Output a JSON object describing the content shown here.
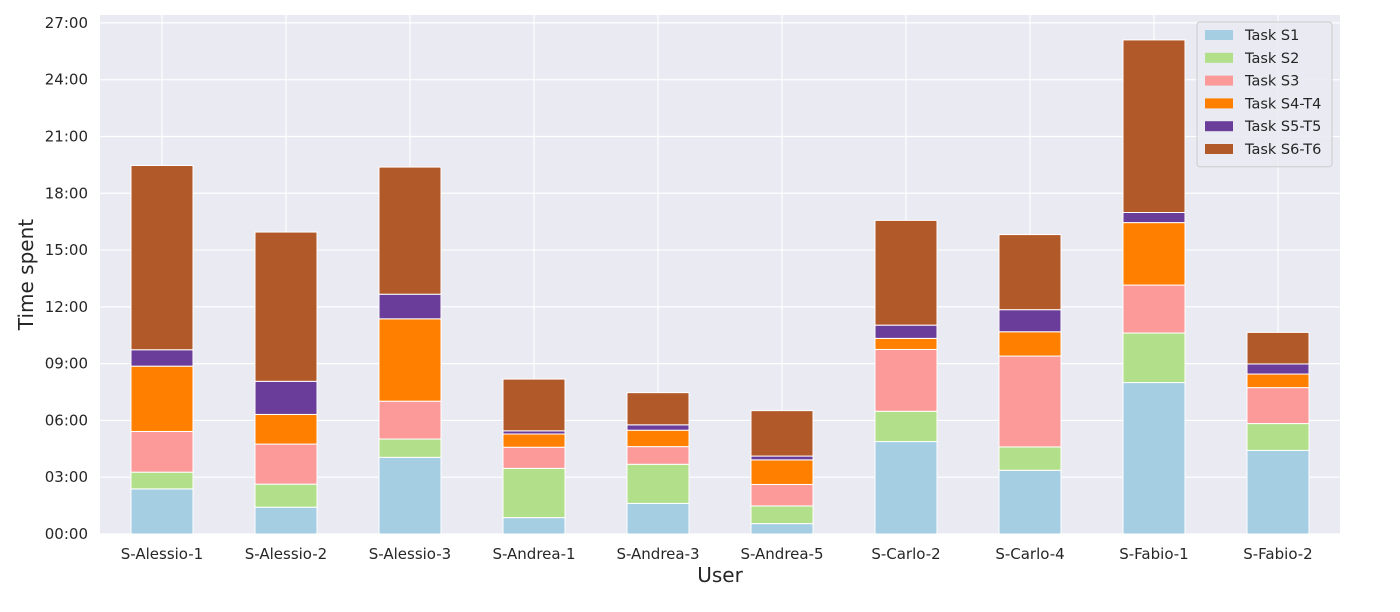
{
  "chart_data": {
    "type": "bar",
    "stacked": true,
    "xlabel": "User",
    "ylabel": "Time spent",
    "y_unit": "mm:ss",
    "ylim": [
      "00:00",
      "27:00"
    ],
    "yticks": [
      "00:00",
      "03:00",
      "06:00",
      "09:00",
      "12:00",
      "15:00",
      "18:00",
      "21:00",
      "24:00",
      "27:00"
    ],
    "grid": true,
    "legend_position": "top-right",
    "categories": [
      "S-Alessio-1",
      "S-Alessio-2",
      "S-Alessio-3",
      "S-Andrea-1",
      "S-Andrea-3",
      "S-Andrea-5",
      "S-Carlo-2",
      "S-Carlo-4",
      "S-Fabio-1",
      "S-Fabio-2"
    ],
    "series": [
      {
        "name": "Task S1",
        "color": "#a6cee3",
        "values": [
          "02:23",
          "01:25",
          "04:03",
          "00:52",
          "01:37",
          "00:33",
          "04:53",
          "03:22",
          "08:00",
          "04:25"
        ]
      },
      {
        "name": "Task S2",
        "color": "#b2df8a",
        "values": [
          "00:53",
          "01:13",
          "00:58",
          "02:36",
          "02:04",
          "00:56",
          "01:36",
          "01:14",
          "02:37",
          "01:25"
        ]
      },
      {
        "name": "Task S3",
        "color": "#fb9a99",
        "values": [
          "02:09",
          "02:07",
          "02:00",
          "01:07",
          "00:56",
          "01:08",
          "03:16",
          "04:48",
          "02:32",
          "01:54"
        ]
      },
      {
        "name": "Task S4-T4",
        "color": "#ff7f00",
        "values": [
          "03:27",
          "01:34",
          "04:21",
          "00:42",
          "00:52",
          "01:18",
          "00:35",
          "01:17",
          "03:18",
          "00:43"
        ]
      },
      {
        "name": "Task S5-T5",
        "color": "#6a3d9a",
        "values": [
          "00:52",
          "01:45",
          "01:18",
          "00:10",
          "00:17",
          "00:12",
          "00:42",
          "01:10",
          "00:32",
          "00:32"
        ]
      },
      {
        "name": "Task S6-T6",
        "color": "#b15928",
        "values": [
          "09:44",
          "07:53",
          "06:43",
          "02:44",
          "01:42",
          "02:24",
          "05:32",
          "03:58",
          "09:07",
          "01:40"
        ]
      }
    ]
  }
}
